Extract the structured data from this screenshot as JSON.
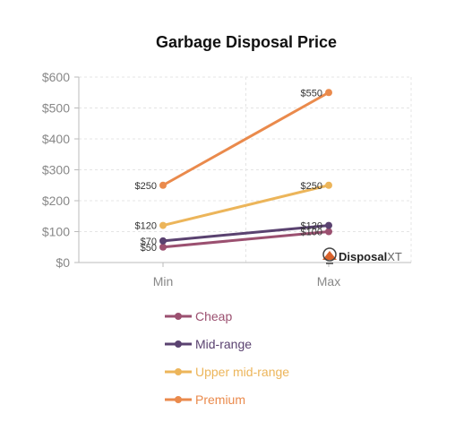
{
  "chart_data": {
    "type": "line",
    "title": "Garbage Disposal Price",
    "categories": [
      "Min",
      "Max"
    ],
    "ylim": [
      0,
      600
    ],
    "yticks": [
      0,
      100,
      200,
      300,
      400,
      500,
      600
    ],
    "ytick_labels": [
      "$0",
      "$100",
      "$200",
      "$300",
      "$400",
      "$500",
      "$600"
    ],
    "grid": true,
    "legend_position": "bottom",
    "series": [
      {
        "name": "Cheap",
        "values": [
          50,
          100
        ],
        "labels": [
          "$50",
          "$100"
        ],
        "color": "#9b5070"
      },
      {
        "name": "Mid-range",
        "values": [
          70,
          120
        ],
        "labels": [
          "$70",
          "$120"
        ],
        "color": "#5a4270"
      },
      {
        "name": "Upper mid-range",
        "values": [
          120,
          250
        ],
        "labels": [
          "$120",
          "$250"
        ],
        "color": "#ecb55a"
      },
      {
        "name": "Premium",
        "values": [
          250,
          550
        ],
        "labels": [
          "$250",
          "$550"
        ],
        "color": "#ea8a4c"
      }
    ]
  },
  "watermark": {
    "brand_bold": "Disposal",
    "brand_light": "XT"
  }
}
